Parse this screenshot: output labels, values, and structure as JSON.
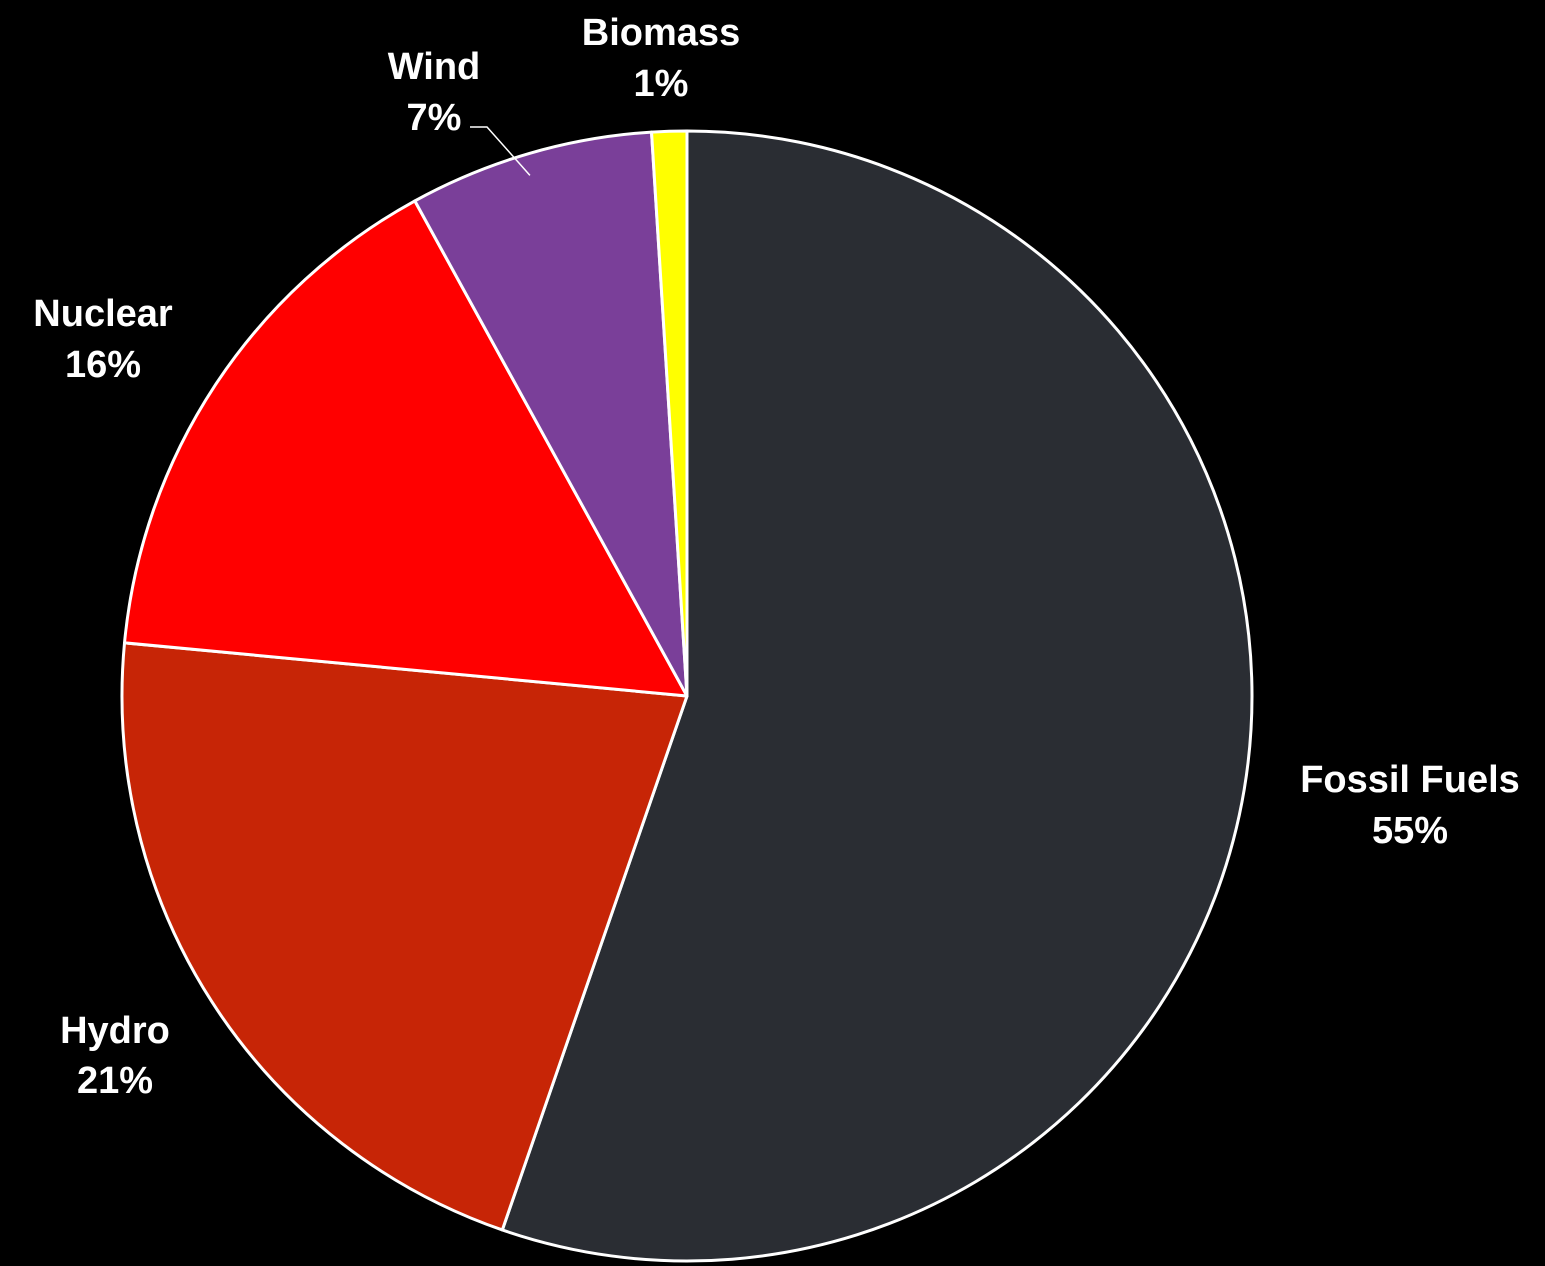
{
  "chart_data": {
    "type": "pie",
    "title": "",
    "start_angle_deg": 0,
    "direction": "clockwise",
    "legend": "none",
    "slices": [
      {
        "name": "Fossil Fuels",
        "value": 55.3,
        "label": "55%",
        "color": "#2a2d33"
      },
      {
        "name": "Hydro",
        "value": 21.2,
        "label": "21%",
        "color": "#c72506"
      },
      {
        "name": "Nuclear",
        "value": 15.5,
        "label": "16%",
        "color": "#ff0000"
      },
      {
        "name": "Wind",
        "value": 7.0,
        "label": "7%",
        "color": "#7a3f99"
      },
      {
        "name": "Biomass",
        "value": 1.0,
        "label": "1%",
        "color": "#ffff00"
      }
    ]
  }
}
